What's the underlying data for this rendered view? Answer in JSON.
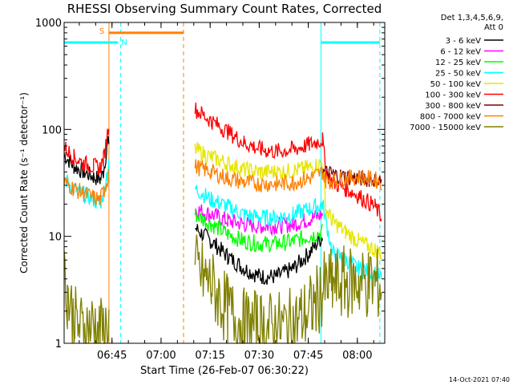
{
  "chart_data": {
    "type": "line",
    "title": "RHESSI Observing Summary Count Rates, Corrected",
    "xlabel": "Start Time (26-Feb-07 06:30:22)",
    "ylabel": "Corrected Count Rate (s⁻¹ detector⁻¹)",
    "x_unit": "minutes after 06:30:22 UT",
    "xlim": [
      0,
      98
    ],
    "ylim": [
      1,
      1000
    ],
    "yscale": "log",
    "x_ticks": [
      {
        "label": "06:45",
        "x": 14.63
      },
      {
        "label": "07:00",
        "x": 29.63
      },
      {
        "label": "07:15",
        "x": 44.63
      },
      {
        "label": "07:30",
        "x": 59.63
      },
      {
        "label": "07:45",
        "x": 74.63
      },
      {
        "label": "08:00",
        "x": 89.63
      }
    ],
    "y_ticks": [
      {
        "label": "1",
        "y": 1
      },
      {
        "label": "10",
        "y": 10
      },
      {
        "label": "100",
        "y": 100
      },
      {
        "label": "1000",
        "y": 1000
      }
    ],
    "legend_header": [
      "Det 1,3,4,5,6,9,",
      "Att 0"
    ],
    "legend_position": "right",
    "series": [
      {
        "name": "3 - 6 keV",
        "color": "#000000",
        "values": [
          [
            0,
            58
          ],
          [
            3,
            45
          ],
          [
            6,
            40
          ],
          [
            9,
            36
          ],
          [
            11,
            34
          ],
          [
            12,
            40
          ],
          [
            13,
            65
          ],
          [
            13.7,
            78
          ],
          [
            40,
            12
          ],
          [
            45,
            9
          ],
          [
            50,
            6.5
          ],
          [
            55,
            5
          ],
          [
            60,
            4.2
          ],
          [
            65,
            4.2
          ],
          [
            70,
            5
          ],
          [
            75,
            7
          ],
          [
            79,
            10
          ]
        ]
      },
      {
        "name": "6 - 12 keV",
        "color": "#ff00ff",
        "values": [
          [
            40,
            18
          ],
          [
            45,
            16
          ],
          [
            50,
            14
          ],
          [
            55,
            13
          ],
          [
            60,
            12.5
          ],
          [
            65,
            12.5
          ],
          [
            70,
            13
          ],
          [
            75,
            14.5
          ],
          [
            79,
            16
          ]
        ]
      },
      {
        "name": "12 - 25 keV",
        "color": "#00ff00",
        "values": [
          [
            40,
            16
          ],
          [
            45,
            13
          ],
          [
            50,
            10.5
          ],
          [
            55,
            9
          ],
          [
            60,
            8.5
          ],
          [
            65,
            8.5
          ],
          [
            70,
            9
          ],
          [
            75,
            10
          ],
          [
            79,
            11
          ]
        ]
      },
      {
        "name": "25 - 50 keV",
        "color": "#00ffff",
        "values": [
          [
            0,
            35
          ],
          [
            3,
            28
          ],
          [
            6,
            25
          ],
          [
            9,
            22
          ],
          [
            11,
            20
          ],
          [
            12,
            25
          ],
          [
            13,
            38
          ],
          [
            13.7,
            45
          ],
          [
            40,
            28
          ],
          [
            45,
            22
          ],
          [
            50,
            19
          ],
          [
            55,
            16
          ],
          [
            60,
            15
          ],
          [
            65,
            15
          ],
          [
            70,
            16
          ],
          [
            75,
            18
          ],
          [
            79,
            20
          ],
          [
            82,
            7
          ],
          [
            86,
            6
          ],
          [
            90,
            5
          ],
          [
            95,
            4.5
          ],
          [
            97,
            4
          ]
        ]
      },
      {
        "name": "50 - 100 keV",
        "color": "#e6e600",
        "values": [
          [
            40,
            65
          ],
          [
            45,
            55
          ],
          [
            50,
            48
          ],
          [
            55,
            42
          ],
          [
            60,
            40
          ],
          [
            65,
            40
          ],
          [
            70,
            41
          ],
          [
            75,
            44
          ],
          [
            79,
            48
          ],
          [
            80,
            18
          ],
          [
            82,
            14
          ],
          [
            86,
            11
          ],
          [
            90,
            9
          ],
          [
            95,
            7.5
          ],
          [
            97,
            7
          ]
        ]
      },
      {
        "name": "100 - 300 keV",
        "color": "#ff0000",
        "values": [
          [
            0,
            68
          ],
          [
            3,
            55
          ],
          [
            6,
            48
          ],
          [
            9,
            45
          ],
          [
            11,
            44
          ],
          [
            12,
            52
          ],
          [
            13,
            80
          ],
          [
            13.7,
            120
          ],
          [
            40,
            155
          ],
          [
            45,
            120
          ],
          [
            50,
            95
          ],
          [
            55,
            75
          ],
          [
            60,
            65
          ],
          [
            65,
            62
          ],
          [
            70,
            65
          ],
          [
            75,
            72
          ],
          [
            79,
            80
          ],
          [
            80,
            40
          ],
          [
            82,
            32
          ],
          [
            86,
            28
          ],
          [
            90,
            24
          ],
          [
            95,
            19
          ],
          [
            97,
            15
          ]
        ]
      },
      {
        "name": "300 - 800 keV",
        "color": "#800000",
        "values": [
          [
            79,
            40
          ],
          [
            82,
            38
          ],
          [
            86,
            36
          ],
          [
            90,
            35
          ],
          [
            95,
            34
          ],
          [
            97,
            33
          ]
        ]
      },
      {
        "name": "800 - 7000 keV",
        "color": "#ff8000",
        "values": [
          [
            0,
            32
          ],
          [
            3,
            28
          ],
          [
            6,
            25
          ],
          [
            9,
            23
          ],
          [
            11,
            22
          ],
          [
            12,
            26
          ],
          [
            13,
            32
          ],
          [
            13.7,
            40
          ],
          [
            40,
            45
          ],
          [
            45,
            40
          ],
          [
            50,
            35
          ],
          [
            55,
            32
          ],
          [
            60,
            31
          ],
          [
            65,
            31
          ],
          [
            70,
            32
          ],
          [
            75,
            35
          ],
          [
            79,
            40
          ],
          [
            80,
            33
          ],
          [
            82,
            33
          ],
          [
            86,
            35
          ],
          [
            90,
            36
          ],
          [
            95,
            34
          ],
          [
            97,
            32
          ]
        ]
      },
      {
        "name": "7000 - 15000 keV",
        "color": "#808000",
        "values": [
          [
            0,
            4
          ],
          [
            1,
            3
          ],
          [
            3,
            1.6
          ],
          [
            6,
            1.3
          ],
          [
            9,
            1.5
          ],
          [
            11,
            1.2
          ],
          [
            13.7,
            1.5
          ],
          [
            40,
            5
          ],
          [
            45,
            3.5
          ],
          [
            50,
            2
          ],
          [
            55,
            1.5
          ],
          [
            60,
            1.4
          ],
          [
            65,
            1.4
          ],
          [
            70,
            1.5
          ],
          [
            75,
            2
          ],
          [
            79,
            3
          ],
          [
            80,
            3.5
          ],
          [
            82,
            3.5
          ],
          [
            86,
            3.7
          ],
          [
            90,
            3.7
          ],
          [
            95,
            3.6
          ],
          [
            97,
            3.5
          ]
        ]
      }
    ],
    "attenuator_bars": [
      {
        "label": "",
        "color": "#00ffff",
        "y": 650,
        "x_start": 0,
        "x_end": 16.5
      },
      {
        "label": "",
        "color": "#00ffff",
        "y": 650,
        "x_start": 78.5,
        "x_end": 96.5
      }
    ],
    "saa_bar": {
      "label": "S",
      "color": "#ff8000",
      "y": 800,
      "x_start": 13.7,
      "x_end": 36.5
    },
    "night_label": {
      "label": "N",
      "color": "#00ffff",
      "y": 660,
      "x": 17.5
    },
    "vertical_markers": [
      {
        "x": 0,
        "color": "#00ffff",
        "style": "solid"
      },
      {
        "x": 13.7,
        "color": "#ff8000",
        "style": "solid"
      },
      {
        "x": 17.3,
        "color": "#00ffff",
        "style": "dashed"
      },
      {
        "x": 36.5,
        "color": "#ff8000",
        "style": "dashed"
      },
      {
        "x": 78.5,
        "color": "#00ffff",
        "style": "solid"
      },
      {
        "x": 96.5,
        "color": "#00ffff",
        "style": "dashed"
      }
    ]
  },
  "footer_timestamp": "14-Oct-2021 07:40"
}
